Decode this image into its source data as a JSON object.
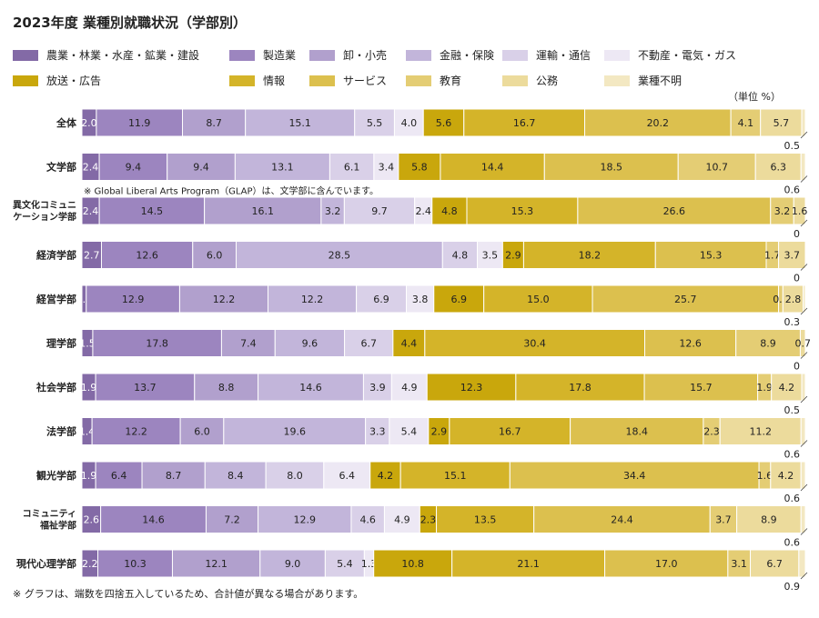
{
  "title": "2023年度 業種別就職状況（学部別）",
  "unit_note": "（単位 %）",
  "footnote": "※ グラフは、端数を四捨五入しているため、合計値が異なる場合があります。",
  "chart_data": {
    "type": "bar",
    "orientation": "horizontal-stacked",
    "title": "2023年度 業種別就職状況（学部別）",
    "xlim": [
      0,
      100
    ],
    "legend_position": "top",
    "categories": [
      {
        "label": [
          "全体"
        ],
        "values": [
          2.0,
          11.9,
          8.7,
          15.1,
          5.5,
          4.0,
          5.6,
          16.7,
          20.2,
          4.1,
          5.7,
          0.5
        ]
      },
      {
        "label": [
          "文学部"
        ],
        "values": [
          2.4,
          9.4,
          9.4,
          13.1,
          6.1,
          3.4,
          5.8,
          14.4,
          18.5,
          10.7,
          6.3,
          0.6
        ],
        "note": "※ Global Liberal Arts Program（GLAP）は、文学部に含んでいます。"
      },
      {
        "label": [
          "異文化コミュニ",
          "ケーション学部"
        ],
        "values": [
          2.4,
          14.5,
          16.1,
          3.2,
          9.7,
          2.4,
          4.8,
          15.3,
          26.6,
          3.2,
          1.6,
          0
        ]
      },
      {
        "label": [
          "経済学部"
        ],
        "values": [
          2.7,
          12.6,
          6.0,
          28.5,
          4.8,
          3.5,
          2.9,
          18.2,
          15.3,
          1.7,
          3.7,
          0
        ]
      },
      {
        "label": [
          "経営学部"
        ],
        "values": [
          0.6,
          12.9,
          12.2,
          12.2,
          6.9,
          3.8,
          6.9,
          15.0,
          25.7,
          0.6,
          2.8,
          0.3
        ]
      },
      {
        "label": [
          "理学部"
        ],
        "values": [
          1.5,
          17.8,
          7.4,
          9.6,
          6.7,
          0,
          4.4,
          30.4,
          12.6,
          8.9,
          0.7,
          0
        ]
      },
      {
        "label": [
          "社会学部"
        ],
        "values": [
          1.9,
          13.7,
          8.8,
          14.6,
          3.9,
          4.9,
          12.3,
          17.8,
          15.7,
          1.9,
          4.2,
          0.5
        ]
      },
      {
        "label": [
          "法学部"
        ],
        "values": [
          1.4,
          12.2,
          6.0,
          19.6,
          3.3,
          5.4,
          2.9,
          16.7,
          18.4,
          2.3,
          11.2,
          0.6
        ]
      },
      {
        "label": [
          "観光学部"
        ],
        "values": [
          1.9,
          6.4,
          8.7,
          8.4,
          8.0,
          6.4,
          4.2,
          15.1,
          34.4,
          1.6,
          4.2,
          0.6
        ]
      },
      {
        "label": [
          "コミュニティ",
          "福祉学部"
        ],
        "values": [
          2.6,
          14.6,
          7.2,
          12.9,
          4.6,
          4.9,
          2.3,
          13.5,
          24.4,
          3.7,
          8.9,
          0.6
        ]
      },
      {
        "label": [
          "現代心理学部"
        ],
        "values": [
          2.2,
          10.3,
          12.1,
          9.0,
          5.4,
          1.3,
          10.8,
          21.1,
          17.0,
          3.1,
          6.7,
          0.9
        ]
      }
    ],
    "series": [
      {
        "name": "農業・林業・水産・鉱業・建設",
        "color": "#836aa6"
      },
      {
        "name": "製造業",
        "color": "#9c85bf"
      },
      {
        "name": "卸・小売",
        "color": "#b1a0cd"
      },
      {
        "name": "金融・保険",
        "color": "#c2b5da"
      },
      {
        "name": "運輸・通信",
        "color": "#d9d0e8"
      },
      {
        "name": "不動産・電気・ガス",
        "color": "#ede8f4"
      },
      {
        "name": "放送・広告",
        "color": "#c9a70c"
      },
      {
        "name": "情報",
        "color": "#d4b429"
      },
      {
        "name": "サービス",
        "color": "#dcc04e"
      },
      {
        "name": "教育",
        "color": "#e4cd74"
      },
      {
        "name": "公務",
        "color": "#ecdb9c"
      },
      {
        "name": "業種不明",
        "color": "#f3e8c2"
      }
    ]
  }
}
